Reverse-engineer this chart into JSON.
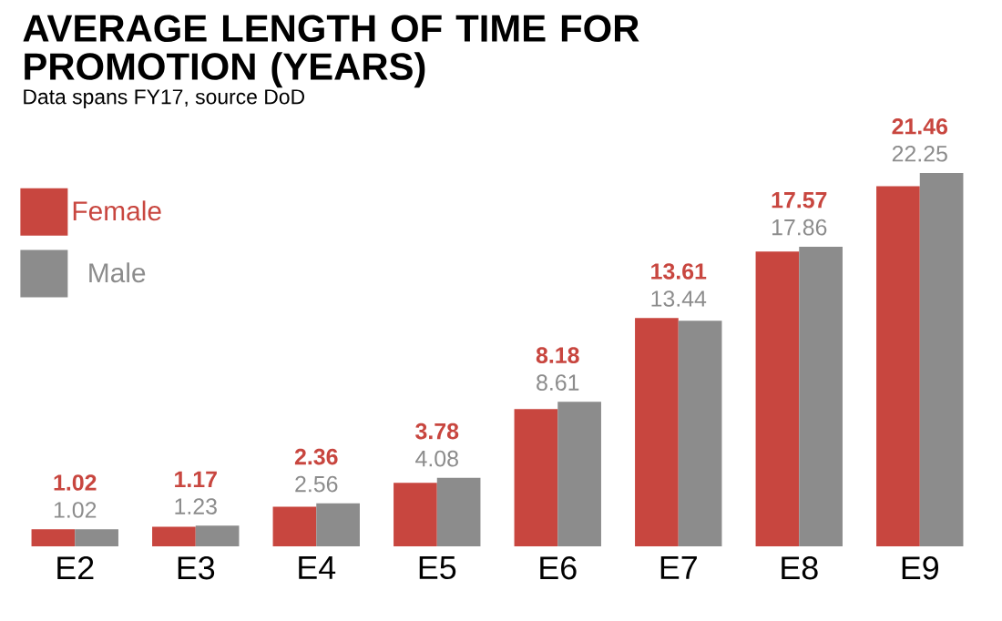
{
  "chart_data": {
    "type": "bar",
    "title": "AVERAGE LENGTH OF TIME FOR PROMOTION (YEARS)",
    "subtitle": "Data spans FY17, source DoD",
    "categories": [
      "E2",
      "E3",
      "E4",
      "E5",
      "E6",
      "E7",
      "E8",
      "E9"
    ],
    "series": [
      {
        "name": "Female",
        "color": "#c8463f",
        "values": [
          1.02,
          1.17,
          2.36,
          3.78,
          8.18,
          13.61,
          17.57,
          21.46
        ]
      },
      {
        "name": "Male",
        "color": "#8c8c8c",
        "values": [
          1.02,
          1.23,
          2.56,
          4.08,
          8.61,
          13.44,
          17.86,
          22.25
        ]
      }
    ],
    "data_labels": true,
    "legend": "top left"
  }
}
